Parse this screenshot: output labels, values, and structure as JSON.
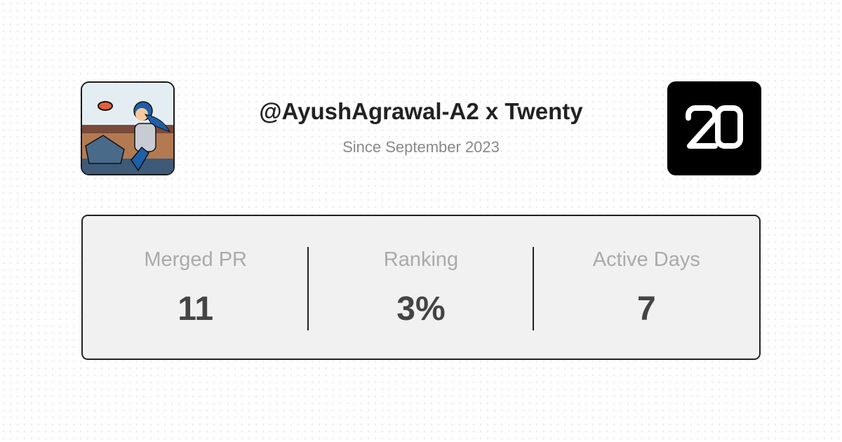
{
  "header": {
    "title": "@AyushAgrawal-A2 x Twenty",
    "subtitle": "Since September 2023",
    "avatar_icon": "user-avatar-cartoon",
    "logo_icon": "twenty-logo",
    "logo_text": "20"
  },
  "stats": [
    {
      "label": "Merged PR",
      "value": "11"
    },
    {
      "label": "Ranking",
      "value": "3%"
    },
    {
      "label": "Active Days",
      "value": "7"
    }
  ],
  "colors": {
    "logo_bg": "#000000",
    "card_bg": "#f1f1f1",
    "card_border": "#222222"
  }
}
